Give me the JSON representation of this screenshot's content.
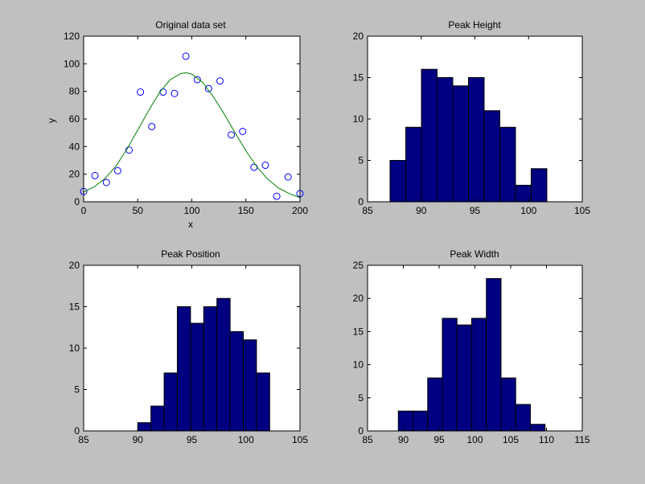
{
  "figure": {
    "background": "#c0c0c0"
  },
  "chart_data": [
    {
      "type": "scatter",
      "title": "Original data set",
      "xlabel": "x",
      "ylabel": "y",
      "xlim": [
        0,
        200
      ],
      "ylim": [
        0,
        120
      ],
      "xticks": [
        0,
        50,
        100,
        150,
        200
      ],
      "yticks": [
        0,
        20,
        40,
        60,
        80,
        100,
        120
      ],
      "grid": false,
      "series": [
        {
          "kind": "markers",
          "marker": "circle-open",
          "color": "#0000ff",
          "x": [
            0,
            10.5,
            21,
            31.5,
            42,
            52.5,
            63,
            73.5,
            84,
            94.5,
            105,
            115.5,
            126,
            136.5,
            147,
            157.5,
            168,
            178.5,
            189,
            200
          ],
          "y": [
            7.5,
            19,
            14,
            22.5,
            37.5,
            79.5,
            54.5,
            79.5,
            78.5,
            105.5,
            88.5,
            82,
            87.5,
            48.5,
            51,
            25,
            26.5,
            4,
            18,
            6
          ]
        },
        {
          "kind": "line",
          "color": "#008000",
          "x": [
            0,
            10,
            20,
            30,
            40,
            50,
            60,
            70,
            80,
            90,
            95,
            100,
            110,
            120,
            130,
            140,
            150,
            160,
            170,
            180,
            190,
            200
          ],
          "y": [
            7,
            11,
            17,
            26,
            38,
            52,
            66,
            79,
            88.5,
            93,
            93.5,
            92.5,
            86.5,
            76,
            63.5,
            50,
            37,
            25.5,
            16.5,
            10,
            6,
            3
          ]
        }
      ]
    },
    {
      "type": "bar",
      "title": "Peak Height",
      "xlim": [
        85,
        105
      ],
      "ylim": [
        0,
        20
      ],
      "xticks": [
        85,
        90,
        95,
        100,
        105
      ],
      "yticks": [
        0,
        5,
        10,
        15,
        20
      ],
      "bar_color": "#000080",
      "bin_edges": [
        87.1,
        88.56,
        90.02,
        91.48,
        92.94,
        94.4,
        95.86,
        97.32,
        98.78,
        100.24,
        101.7
      ],
      "counts": [
        5,
        9,
        16,
        15,
        14,
        15,
        11,
        9,
        2,
        4
      ]
    },
    {
      "type": "bar",
      "title": "Peak Position",
      "xlim": [
        85,
        105
      ],
      "ylim": [
        0,
        20
      ],
      "xticks": [
        85,
        90,
        95,
        100,
        105
      ],
      "yticks": [
        0,
        5,
        10,
        15,
        20
      ],
      "bar_color": "#000080",
      "bin_edges": [
        90.0,
        91.22,
        92.44,
        93.66,
        94.88,
        96.1,
        97.32,
        98.54,
        99.76,
        100.98,
        102.2
      ],
      "counts": [
        1,
        3,
        7,
        15,
        13,
        15,
        16,
        12,
        11,
        7
      ]
    },
    {
      "type": "bar",
      "title": "Peak Width",
      "xlim": [
        85,
        115
      ],
      "ylim": [
        0,
        25
      ],
      "xticks": [
        85,
        90,
        95,
        100,
        105,
        110,
        115
      ],
      "yticks": [
        0,
        5,
        10,
        15,
        20,
        25
      ],
      "bar_color": "#000080",
      "bin_edges": [
        89.3,
        91.35,
        93.4,
        95.45,
        97.5,
        99.55,
        101.6,
        103.65,
        105.7,
        107.75,
        109.8
      ],
      "counts": [
        3,
        3,
        8,
        17,
        16,
        17,
        23,
        8,
        4,
        1
      ]
    }
  ]
}
